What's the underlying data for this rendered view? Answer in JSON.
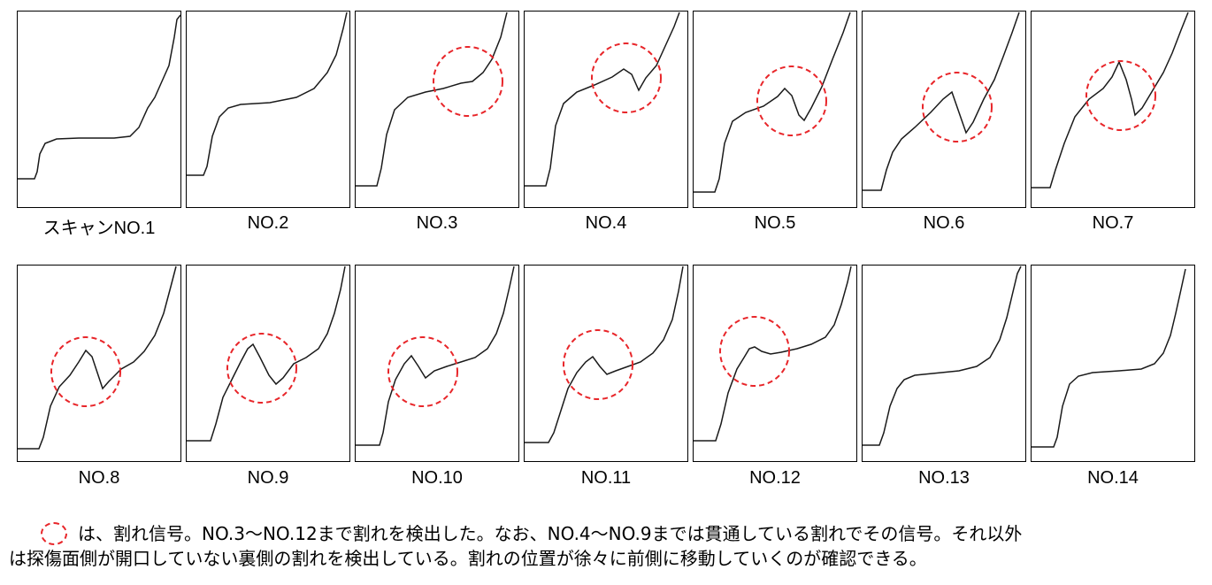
{
  "colors": {
    "trace": "#1a1a1a",
    "crack_marker": "#e8262a",
    "frame": "#000000"
  },
  "panels": [
    {
      "label": "スキャンNO.1",
      "crack": false
    },
    {
      "label": "NO.2",
      "crack": false
    },
    {
      "label": "NO.3",
      "crack": true
    },
    {
      "label": "NO.4",
      "crack": true
    },
    {
      "label": "NO.5",
      "crack": true
    },
    {
      "label": "NO.6",
      "crack": true
    },
    {
      "label": "NO.7",
      "crack": true
    },
    {
      "label": "NO.8",
      "crack": true
    },
    {
      "label": "NO.9",
      "crack": true
    },
    {
      "label": "NO.10",
      "crack": true
    },
    {
      "label": "NO.11",
      "crack": true
    },
    {
      "label": "NO.12",
      "crack": true
    },
    {
      "label": "NO.13",
      "crack": false
    },
    {
      "label": "NO.14",
      "crack": false
    }
  ],
  "note": {
    "line1": "は、割れ信号。NO.3～NO.12まで割れを検出した。なお、NO.4～NO.9までは貫通している割れでその信号。それ以外",
    "line2": "は探傷面側が開口していない裏側の割れを検出している。割れの位置が徐々に前側に移動していくのが確認できる。"
  }
}
